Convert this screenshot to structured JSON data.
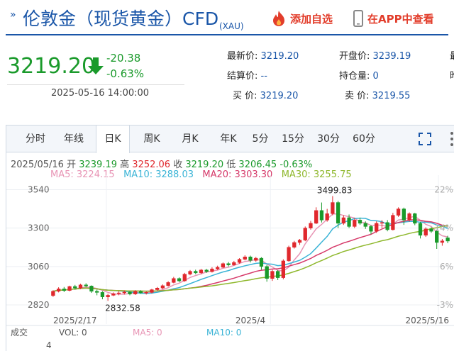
{
  "header": {
    "title": "伦敦金（现货黄金）CFD",
    "subtitle": "(XAU)",
    "add_favorite": "添加自选",
    "app_view": "在APP中查看"
  },
  "quote": {
    "price": "3219.20",
    "change": "-20.38",
    "change_pct": "-0.63%",
    "time": "2025-05-16 14:00:00"
  },
  "stats": {
    "latest_label": "最新价:",
    "latest": "3219.20",
    "settle_label": "结算价:",
    "settle": "--",
    "buy_label": "买  价:",
    "buy": "3219.20",
    "open_label": "开盘价:",
    "open": "3239.19",
    "hold_label": "持仓量:",
    "hold": "0",
    "sell_label": "卖  价:",
    "sell": "3219.55",
    "col3_a": "最",
    "col3_b": "昨"
  },
  "tabs": [
    "分时",
    "年线",
    "日K",
    "周K",
    "月K",
    "年K",
    "5分",
    "15分",
    "30分",
    "60分"
  ],
  "active_tab": "日K",
  "ohlc": {
    "date": "2025/05/16",
    "open_label": "开",
    "open": "3239.19",
    "high_label": "高",
    "high": "3252.06",
    "close_label": "收",
    "close": "3219.20",
    "low_label": "低",
    "low": "3206.45",
    "pct": "-0.63%"
  },
  "ma_legend": {
    "ma5": "MA5: 3224.15",
    "ma10": "MA10: 3288.03",
    "ma20": "MA20: 3303.30",
    "ma30": "MA30: 3255.75"
  },
  "colors": {
    "up": "#e0282d",
    "down": "#1a9a2b",
    "brand": "#1a56a8",
    "ma5": "#e895b5",
    "ma10": "#3bb4d6",
    "ma20": "#d63a6a",
    "ma30": "#8fb82d"
  },
  "chart_data": {
    "type": "candlestick",
    "y_ticks": [
      "3540",
      "3300",
      "3060",
      "2820"
    ],
    "y_pct_ticks": [
      "22%",
      "14%",
      "6%",
      "-3%"
    ],
    "x_labels": [
      "2025/2/17",
      "2025/4",
      "2025/5/16"
    ],
    "max_label": "3499.83",
    "min_label": "2832.58",
    "ylim": [
      2780,
      3560
    ],
    "candles": [
      [
        2878,
        2905,
        2870,
        2912
      ],
      [
        2905,
        2920,
        2898,
        2930
      ],
      [
        2920,
        2910,
        2900,
        2932
      ],
      [
        2910,
        2935,
        2905,
        2940
      ],
      [
        2935,
        2925,
        2915,
        2945
      ],
      [
        2925,
        2945,
        2918,
        2952
      ],
      [
        2945,
        2938,
        2930,
        2955
      ],
      [
        2938,
        2905,
        2895,
        2942
      ],
      [
        2905,
        2898,
        2880,
        2915
      ],
      [
        2898,
        2870,
        2855,
        2905
      ],
      [
        2870,
        2880,
        2845,
        2890
      ],
      [
        2880,
        2890,
        2875,
        2898
      ],
      [
        2890,
        2895,
        2880,
        2905
      ],
      [
        2895,
        2900,
        2885,
        2910
      ],
      [
        2900,
        2888,
        2880,
        2905
      ],
      [
        2888,
        2905,
        2882,
        2912
      ],
      [
        2905,
        2895,
        2890,
        2912
      ],
      [
        2895,
        2898,
        2885,
        2905
      ],
      [
        2898,
        2915,
        2892,
        2920
      ],
      [
        2915,
        2925,
        2905,
        2932
      ],
      [
        2925,
        2940,
        2918,
        2948
      ],
      [
        2940,
        2960,
        2935,
        2968
      ],
      [
        2960,
        2985,
        2955,
        2995
      ],
      [
        2985,
        2970,
        2962,
        2992
      ],
      [
        2970,
        3012,
        2965,
        3020
      ],
      [
        3012,
        3030,
        3005,
        3038
      ],
      [
        3030,
        3020,
        3012,
        3040
      ],
      [
        3020,
        3038,
        3012,
        3045
      ],
      [
        3038,
        3028,
        3020,
        3045
      ],
      [
        3028,
        3045,
        3022,
        3055
      ],
      [
        3045,
        3055,
        3038,
        3065
      ],
      [
        3055,
        3078,
        3050,
        3085
      ],
      [
        3078,
        3070,
        3060,
        3088
      ],
      [
        3070,
        3085,
        3065,
        3095
      ],
      [
        3085,
        3105,
        3078,
        3112
      ],
      [
        3105,
        3120,
        3098,
        3130
      ],
      [
        3120,
        3098,
        3085,
        3128
      ],
      [
        3098,
        3112,
        3090,
        3120
      ],
      [
        3112,
        3060,
        3040,
        3118
      ],
      [
        3060,
        2985,
        2965,
        3070
      ],
      [
        2985,
        3030,
        2970,
        3040
      ],
      [
        3030,
        2990,
        2975,
        3038
      ],
      [
        2990,
        3095,
        2980,
        3105
      ],
      [
        3095,
        3180,
        3090,
        3190
      ],
      [
        3180,
        3210,
        3172,
        3220
      ],
      [
        3210,
        3225,
        3195,
        3232
      ],
      [
        3225,
        3300,
        3218,
        3310
      ],
      [
        3300,
        3330,
        3290,
        3345
      ],
      [
        3330,
        3410,
        3325,
        3430
      ],
      [
        3410,
        3350,
        3335,
        3460
      ],
      [
        3350,
        3390,
        3340,
        3420
      ],
      [
        3390,
        3460,
        3380,
        3500
      ],
      [
        3460,
        3330,
        3300,
        3470
      ],
      [
        3330,
        3365,
        3320,
        3380
      ],
      [
        3365,
        3310,
        3300,
        3385
      ],
      [
        3310,
        3350,
        3300,
        3362
      ],
      [
        3350,
        3330,
        3320,
        3365
      ],
      [
        3330,
        3310,
        3295,
        3342
      ],
      [
        3310,
        3280,
        3262,
        3320
      ],
      [
        3280,
        3330,
        3270,
        3342
      ],
      [
        3330,
        3335,
        3300,
        3350
      ],
      [
        3335,
        3290,
        3280,
        3350
      ],
      [
        3290,
        3380,
        3285,
        3395
      ],
      [
        3380,
        3420,
        3370,
        3430
      ],
      [
        3420,
        3350,
        3320,
        3428
      ],
      [
        3350,
        3390,
        3340,
        3398
      ],
      [
        3390,
        3330,
        3318,
        3395
      ],
      [
        3330,
        3255,
        3235,
        3340
      ],
      [
        3255,
        3295,
        3245,
        3305
      ],
      [
        3295,
        3280,
        3270,
        3305
      ],
      [
        3280,
        3210,
        3170,
        3290
      ],
      [
        3210,
        3220,
        3190,
        3232
      ],
      [
        3239,
        3219,
        3206,
        3252
      ]
    ]
  },
  "volume": {
    "label": "成交",
    "vol": "VOL: 0",
    "ma5": "MA5: 0",
    "ma10": "MA10: 0",
    "count": "4"
  }
}
